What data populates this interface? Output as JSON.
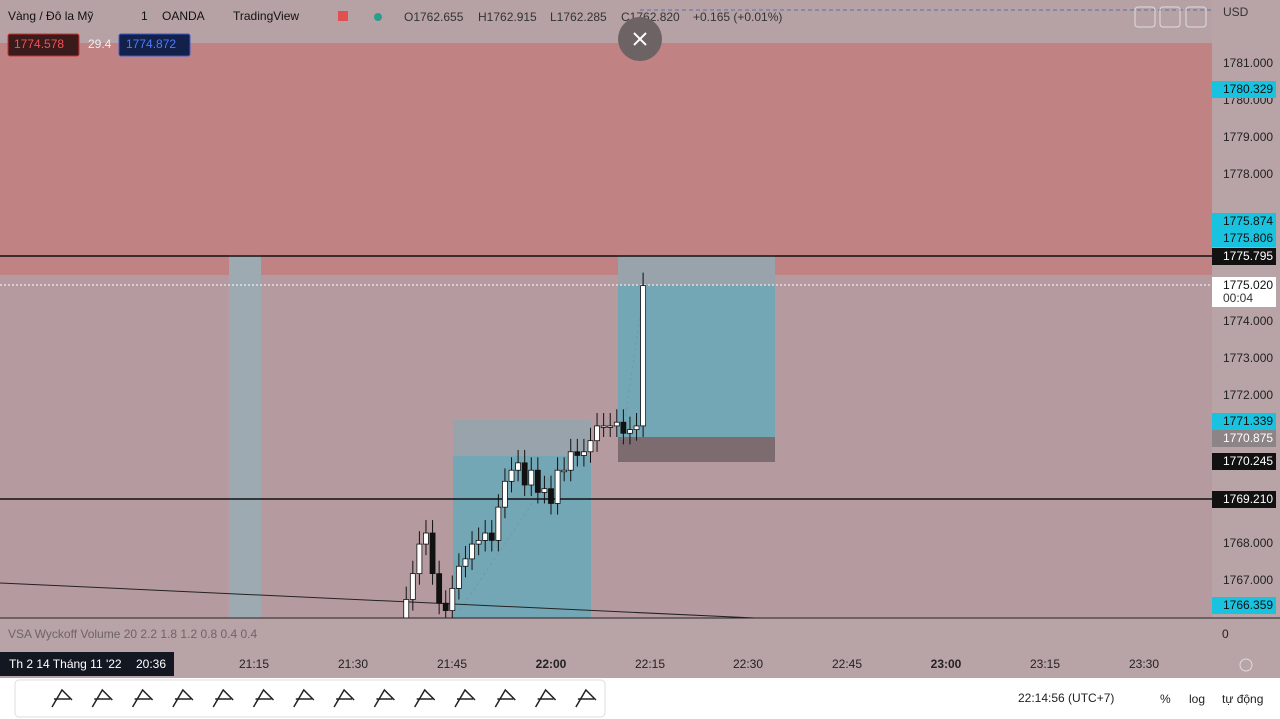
{
  "header": {
    "symbol": "Vàng / Đô la Mỹ",
    "interval": "1",
    "broker": "OANDA",
    "source": "TradingView",
    "open": "O1762.655",
    "high": "H1762.915",
    "low": "L1762.285",
    "close": "C1762.820",
    "change": "+0.165 (+0.01%)",
    "currency": "USD"
  },
  "order_panel": {
    "sell": "1774.578",
    "spread": "29.4",
    "buy": "1774.872"
  },
  "price_axis": {
    "labels": [
      "1781.000",
      "1780.000",
      "1779.000",
      "1778.000",
      "1774.000",
      "1773.000",
      "1772.000",
      "1768.000",
      "1767.000"
    ],
    "tags": [
      {
        "text": "1780.329",
        "style": "cyan"
      },
      {
        "text": "1775.874",
        "style": "cyan"
      },
      {
        "text": "1775.806",
        "style": "cyan"
      },
      {
        "text": "1775.795",
        "style": "black"
      },
      {
        "text": "1775.020",
        "style": "white"
      },
      {
        "text": "1771.339",
        "style": "cyan"
      },
      {
        "text": "1770.875",
        "style": "gray"
      },
      {
        "text": "1770.245",
        "style": "black"
      },
      {
        "text": "1769.210",
        "style": "black"
      },
      {
        "text": "1766.359",
        "style": "cyan"
      }
    ],
    "countdown": "00:04"
  },
  "indicator": {
    "label": "VSA Wyckoff Volume 20 2.2 1.8 1.2 0.8 0.4 0.4",
    "value": "0"
  },
  "time_axis": {
    "cursor_date": "Th 2 14 Tháng 11 '22",
    "cursor_time": "20:36",
    "labels": [
      "21:15",
      "21:30",
      "21:45",
      "22:00",
      "22:15",
      "22:30",
      "22:45",
      "23:00",
      "23:15",
      "23:30"
    ]
  },
  "status_bar": {
    "clock": "22:14:56 (UTC+7)",
    "percent": "%",
    "log": "log",
    "auto": "tự động"
  }
}
